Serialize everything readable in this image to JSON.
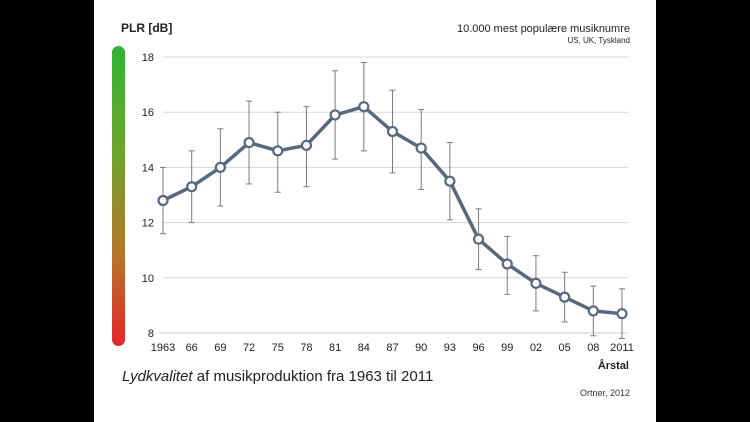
{
  "chart_data": {
    "type": "line",
    "title": "10.000 mest populære musiknumre",
    "subtitle": "US, UK, Tyskland",
    "ylabel": "PLR [dB]",
    "xlabel": "Årstal",
    "ylim": [
      8,
      18
    ],
    "yticks": [
      8,
      10,
      12,
      14,
      16,
      18
    ],
    "categories": [
      "1963",
      "66",
      "69",
      "72",
      "75",
      "78",
      "81",
      "84",
      "87",
      "90",
      "93",
      "96",
      "99",
      "02",
      "05",
      "08",
      "2011"
    ],
    "series": [
      {
        "name": "PLR",
        "values": [
          12.8,
          13.3,
          14.0,
          14.9,
          14.6,
          14.8,
          15.9,
          16.2,
          15.3,
          14.7,
          13.5,
          11.4,
          10.5,
          9.8,
          9.3,
          8.8,
          8.7
        ],
        "err_low": [
          11.6,
          12.0,
          12.6,
          13.4,
          13.1,
          13.3,
          14.3,
          14.6,
          13.8,
          13.2,
          12.1,
          10.3,
          9.4,
          8.8,
          8.4,
          7.9,
          7.8
        ],
        "err_high": [
          14.0,
          14.6,
          15.4,
          16.4,
          16.0,
          16.2,
          17.5,
          17.8,
          16.8,
          16.1,
          14.9,
          12.5,
          11.5,
          10.8,
          10.2,
          9.7,
          9.6
        ]
      }
    ],
    "grid": true,
    "colors": {
      "line": "#56697e",
      "marker_fill": "#ffffff",
      "grid": "#d6d6d6",
      "error": "#7b7b7b"
    }
  },
  "caption": {
    "italic_part": "Lydkvalitet",
    "rest": " af musikproduktion fra 1963 til 2011"
  },
  "credit": "Ortner, 2012"
}
